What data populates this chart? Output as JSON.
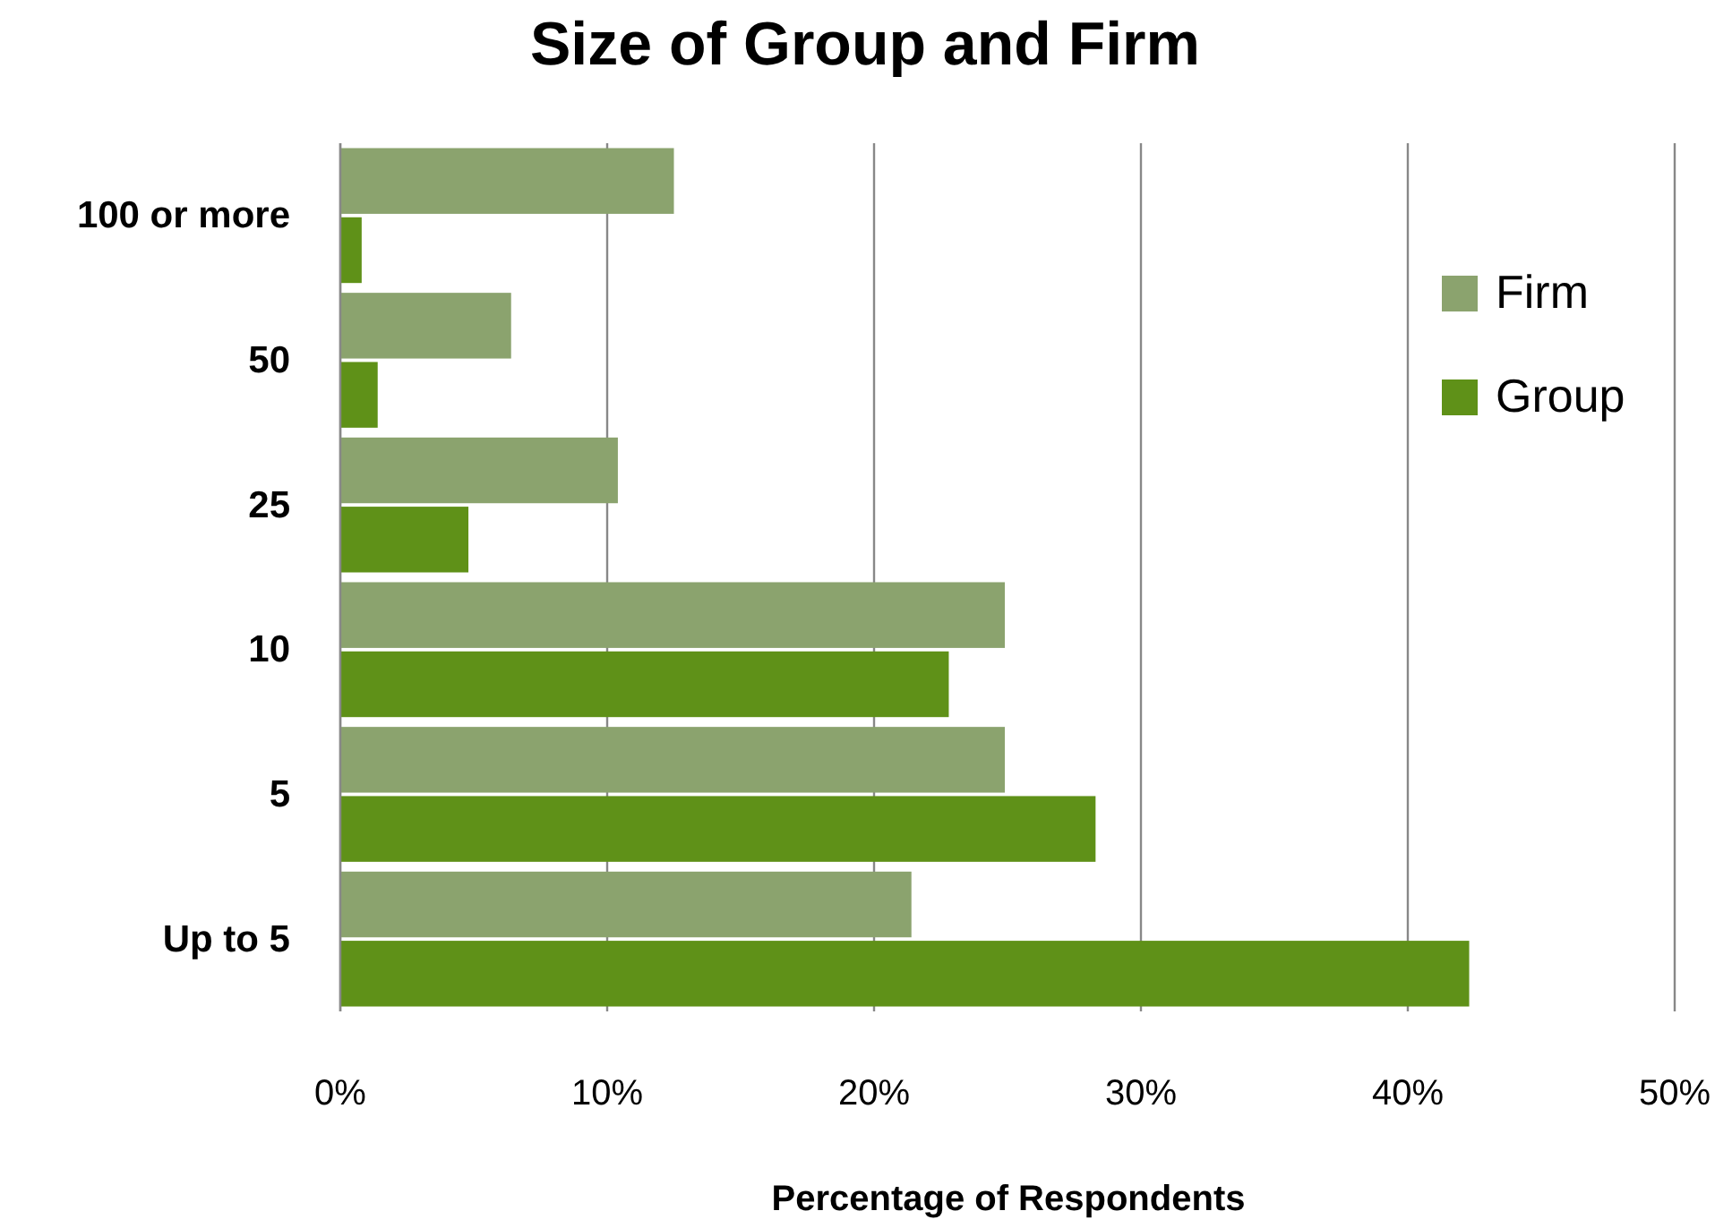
{
  "chart_data": {
    "type": "bar",
    "orientation": "horizontal",
    "title": "Size of Group and Firm",
    "xlabel": "Percentage of Respondents",
    "categories": [
      "100 or more",
      "50",
      "25",
      "10",
      "5",
      "Up to 5"
    ],
    "series": [
      {
        "name": "Firm",
        "color": "#8ba36e",
        "values": [
          12.5,
          6.4,
          10.4,
          24.9,
          24.9,
          21.4
        ]
      },
      {
        "name": "Group",
        "color": "#5f9118",
        "values": [
          0.8,
          1.4,
          4.8,
          22.8,
          28.3,
          42.3
        ]
      }
    ],
    "xlim": [
      0,
      50
    ],
    "xticks": [
      {
        "value": 0,
        "label": "0%"
      },
      {
        "value": 10,
        "label": "10%"
      },
      {
        "value": 20,
        "label": "20%"
      },
      {
        "value": 30,
        "label": "30%"
      },
      {
        "value": 40,
        "label": "40%"
      },
      {
        "value": 50,
        "label": "50%"
      }
    ],
    "grid": "x",
    "legend": "top right"
  }
}
